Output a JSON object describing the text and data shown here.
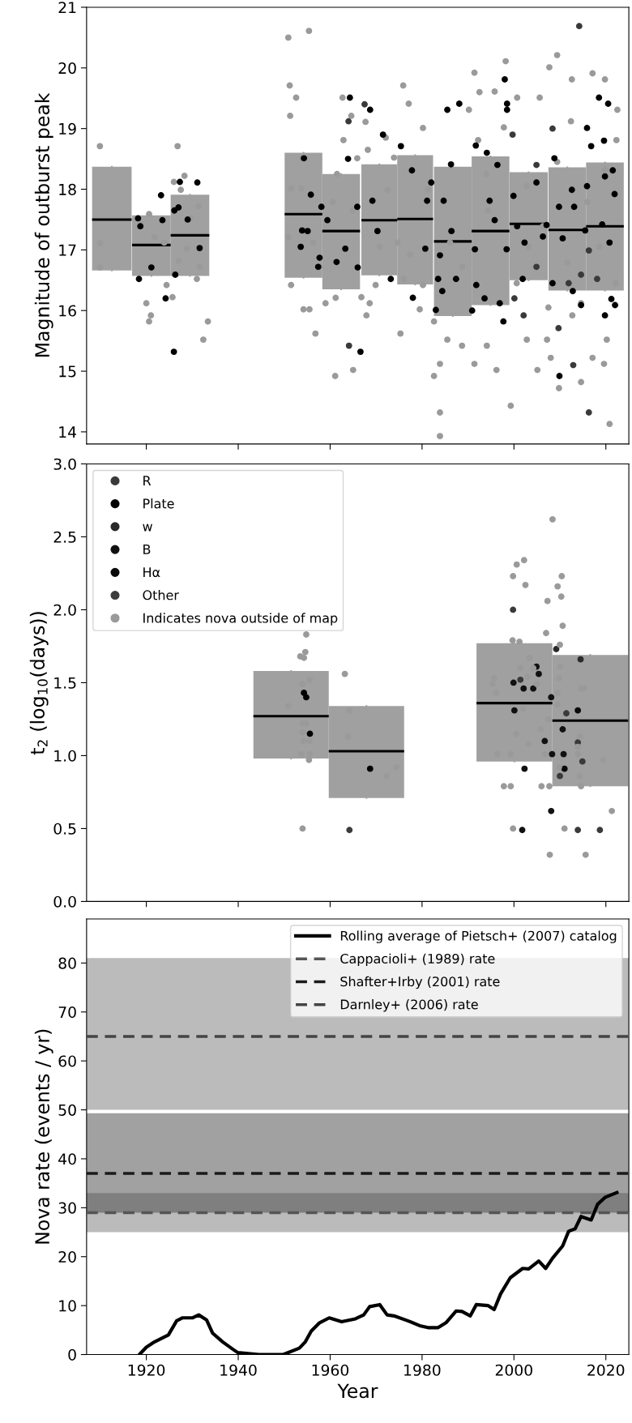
{
  "chart_data": [
    {
      "type": "scatter",
      "ylabel": "Magnitude of outburst peak",
      "marker": "circle",
      "xlim": [
        1907,
        2025
      ],
      "xticks": [
        1920,
        1940,
        1960,
        1980,
        2000,
        2020
      ],
      "ylim": [
        13.8,
        21
      ],
      "yticks": [
        14,
        15,
        16,
        17,
        18,
        19,
        20,
        21
      ],
      "tick_labels": "y",
      "series": [
        {
          "type": "box",
          "color": "#a0a0a0",
          "x": [
            1912.5,
            1921.1,
            1929.5,
            1954.2,
            1962.4,
            1970.7,
            1978.5,
            1986.7,
            1994.9,
            2003.2,
            2011.6,
            2019.8
          ],
          "boxes": [
            {
              "low": 16.66,
              "q1": 16.66,
              "median": 17.5,
              "q3": 18.37,
              "high": 18.37
            },
            {
              "low": 16.57,
              "q1": 16.57,
              "median": 17.08,
              "q3": 17.57,
              "high": 17.57
            },
            {
              "low": 16.57,
              "q1": 16.57,
              "median": 17.24,
              "q3": 17.91,
              "high": 17.91
            },
            {
              "low": 16.54,
              "q1": 16.54,
              "median": 17.59,
              "q3": 18.6,
              "high": 18.6
            },
            {
              "low": 16.35,
              "q1": 16.35,
              "median": 17.31,
              "q3": 18.25,
              "high": 18.25
            },
            {
              "low": 16.58,
              "q1": 16.58,
              "median": 17.49,
              "q3": 18.41,
              "high": 18.41
            },
            {
              "low": 16.43,
              "q1": 16.43,
              "median": 17.51,
              "q3": 18.56,
              "high": 18.56
            },
            {
              "low": 15.91,
              "q1": 15.91,
              "median": 17.14,
              "q3": 18.37,
              "high": 18.37
            },
            {
              "low": 16.09,
              "q1": 16.09,
              "median": 17.31,
              "q3": 18.54,
              "high": 18.54
            },
            {
              "low": 16.5,
              "q1": 16.5,
              "median": 17.43,
              "q3": 18.28,
              "high": 18.28
            },
            {
              "low": 16.33,
              "q1": 16.33,
              "median": 17.33,
              "q3": 18.36,
              "high": 18.36
            },
            {
              "low": 16.33,
              "q1": 16.33,
              "median": 17.39,
              "q3": 18.44,
              "high": 18.44
            }
          ]
        },
        {
          "type": "scatter",
          "color": "#9a9a9a",
          "marker": "circle",
          "x": [
            1909.9,
            1909.9,
            1909.9,
            1926.8,
            1918.9,
            1920.6,
            1921.8,
            1923.9,
            1920,
            1921,
            1920.6,
            1924.4,
            1925.7,
            1926,
            1928.3,
            1927.5,
            1929.6,
            1931.4,
            1931.6,
            1931,
            1932.4,
            1933.4,
            1927,
            1928.8,
            1950.9,
            1955.4,
            1951.2,
            1952.6,
            1951.3,
            1954,
            1951.5,
            1953.7,
            1950.9,
            1951.5,
            1954.2,
            1955.5,
            1956.8,
            1956.3,
            1957.7,
            1961.2,
            1959,
            1961.1,
            1965,
            1962.7,
            1962.9,
            1964.6,
            1965.9,
            1967.7,
            1968.2,
            1967.9,
            1968.6,
            1966.8,
            1969.9,
            1972.1,
            1973.9,
            1975.9,
            1977.1,
            1975.3,
            1977.4,
            1979.5,
            1980.2,
            1980.2,
            1982.6,
            1982.6,
            1983.9,
            1983.9,
            1983.9,
            1985.5,
            1988.7,
            1991.4,
            1992.5,
            1990.2,
            1992.2,
            1991.4,
            1994.1,
            1995.8,
            1998.2,
            1996.2,
            1999.3,
            2000.7,
            1997.8,
            2005.6,
            2007.7,
            2009.4,
            2008,
            2009.8,
            2005.1,
            2012.6,
            2017.1,
            2019.8,
            2020.8,
            2014.6,
            2017.1,
            2019.6,
            2022.5,
            2022.3,
            2012.4,
            2002.8,
            2007.2,
            2012.7,
            2020.2,
            2002.8,
            2006.3,
            2011.6,
            2016,
            2018.6,
            2022.1,
            2000.6,
            1994.4,
            1986.1,
            1988.7,
            1994,
            2009.4,
            2019.8,
            2014.6,
            2007.5,
            2003.2,
            1981.3,
            1972.5,
            1964.9,
            1960.6,
            1961.5,
            1970.8,
            1974.7,
            1976
          ],
          "values": [
            18.71,
            17.11,
            16.71,
            18.71,
            17.41,
            17.59,
            17.21,
            17.12,
            16.12,
            15.92,
            15.82,
            16.42,
            16.22,
            18.12,
            18.22,
            17.99,
            17.52,
            17.72,
            16.72,
            16.52,
            15.52,
            15.82,
            16.82,
            17.02,
            20.5,
            20.61,
            19.71,
            19.51,
            19.21,
            18.51,
            18.01,
            18.01,
            17.21,
            16.42,
            16.02,
            16.02,
            15.62,
            17.12,
            16.72,
            16.21,
            16.12,
            14.92,
            15.02,
            19.51,
            18.81,
            19.21,
            18.51,
            19.11,
            18.65,
            15.92,
            16.12,
            16.22,
            16.42,
            18.85,
            18.52,
            19.71,
            19.41,
            15.62,
            16.92,
            16.02,
            19.01,
            16.42,
            15.82,
            14.92,
            14.32,
            13.93,
            15.12,
            15.52,
            15.42,
            19.92,
            19.6,
            19.31,
            18.81,
            15.12,
            15.42,
            19.61,
            20.11,
            15.02,
            14.43,
            19.51,
            19.02,
            19.51,
            20.01,
            20.21,
            15.22,
            14.72,
            15.02,
            19.81,
            19.91,
            19.81,
            14.13,
            14.82,
            15.22,
            15.12,
            19.31,
            18.81,
            19.12,
            15.52,
            15.52,
            15.92,
            15.52,
            18.05,
            17.39,
            16.79,
            17.79,
            17.05,
            16.45,
            16.45,
            17.65,
            17.12,
            16.72,
            18.25,
            18.45,
            18.32,
            16.12,
            16.05,
            17.05,
            17.99,
            17.99,
            17.65,
            17.79,
            18.25,
            17.05,
            17.12,
            16.52
          ]
        },
        {
          "type": "scatter",
          "color": "#000000",
          "x": [
            1918.4,
            1918.2,
            1918.7,
            1923.2,
            1923.5,
            1921.1,
            1924.2,
            1926,
            1927.3,
            1926.1,
            1927,
            1931.1,
            1931.6,
            1929,
            1926.3,
            1954.3,
            1955.8,
            1953.9,
            1953.6,
            1955.1,
            1957.7,
            1957.4,
            1958.1,
            1959.4,
            1961.4,
            1964.3,
            1963.9,
            1966.6,
            1968.7,
            1965.9,
            1963.3,
            1966,
            1971.5,
            1975.4,
            1977.8,
            1969.2,
            1970.3,
            1973.2,
            1978,
            1980.7,
            1982,
            1981.1,
            1985.5,
            1988.1,
            1986.3,
            1986.4,
            1983.9,
            1983.5,
            1984.4,
            1983,
            1987.4,
            1984.7,
            1991.7,
            1994.1,
            1998,
            1998.5,
            1998.5,
            1996.4,
            1994.7,
            1995.8,
            1991.5,
            1991.8,
            1990.9,
            1993.6,
            1997.7,
            1996.9,
            1999.9,
            1998.4,
            2001.9,
            2002.3,
            2008.8,
            2009.9,
            2018.5,
            2020.5,
            2019.6,
            2015.9,
            2016.8,
            2019.8,
            2021.5,
            2021.9,
            2015.9,
            2012.6,
            2009.8,
            2013.1,
            2004.9,
            2007.1,
            2010.6,
            2015.5,
            2019.2,
            2020.8,
            2008.4,
            2021.2,
            2012.8,
            2006.3,
            2000.7,
            2019.8,
            2022,
            2014.6
          ],
          "values": [
            16.52,
            17.52,
            17.39,
            17.9,
            17.49,
            16.71,
            16.2,
            15.32,
            18.12,
            17.65,
            17.7,
            18.11,
            17.03,
            17.5,
            16.59,
            18.51,
            17.91,
            17.32,
            17.05,
            17.31,
            16.87,
            16.72,
            17.71,
            17.49,
            16.8,
            19.51,
            18.5,
            15.32,
            19.31,
            17.71,
            17.02,
            16.71,
            18.9,
            18.71,
            18.31,
            17.81,
            17.31,
            16.52,
            16.21,
            17.02,
            18.11,
            17.81,
            19.31,
            19.41,
            18.41,
            17.31,
            16.91,
            16.52,
            16.32,
            16.01,
            16.52,
            17.81,
            18.72,
            18.6,
            19.81,
            19.41,
            19.31,
            18.4,
            17.81,
            17.49,
            17.01,
            16.42,
            16.0,
            16.2,
            15.82,
            16.12,
            17.89,
            17.01,
            16.52,
            17.12,
            18.51,
            14.92,
            19.51,
            19.41,
            18.8,
            19.01,
            18.71,
            18.21,
            18.31,
            17.92,
            18.05,
            17.99,
            17.71,
            17.71,
            18.11,
            17.41,
            17.19,
            17.32,
            17.42,
            17.12,
            16.45,
            16.19,
            16.32,
            17.22,
            17.39,
            15.92,
            16.09,
            16.09
          ]
        },
        {
          "type": "scatter",
          "color": "#3a3a3a",
          "x": [
            1964,
            1964.1,
            1967.5,
            1999.7,
            2000.1,
            2002.1,
            2004.9,
            2008.4,
            2009.7,
            2012.9,
            2014.2,
            2016.3,
            2004.9,
            2014.6,
            2018.1,
            2016.3,
            2011.9
          ],
          "values": [
            19.12,
            15.42,
            19.4,
            18.9,
            16.2,
            15.92,
            18.4,
            19.0,
            15.71,
            15.1,
            20.69,
            14.32,
            16.72,
            16.59,
            16.52,
            16.99,
            16.45
          ]
        }
      ]
    },
    {
      "type": "scatter",
      "ylabel": "t$_{2}$ (log$_{10}$(days))",
      "marker": "circle",
      "legend": "top left",
      "xlim": [
        1907,
        2025
      ],
      "xticks": [
        1920,
        1940,
        1960,
        1980,
        2000,
        2020
      ],
      "ylim": [
        0.0,
        3.0
      ],
      "yticks": [
        {
          "value": 0,
          "label": "0.0"
        },
        0.5,
        {
          "value": 1,
          "label": "1.0"
        },
        1.5,
        {
          "value": 2,
          "label": "2.0"
        },
        2.5,
        {
          "value": 3,
          "label": "3.0"
        }
      ],
      "tick_labels": "y",
      "series": [
        {
          "type": "box",
          "color": "#a0a0a0",
          "x": [
            1951.5,
            1967.9,
            2000.1,
            2016.6
          ],
          "boxes": [
            {
              "low": 0.98,
              "q1": 0.98,
              "median": 1.27,
              "q3": 1.58,
              "high": 1.58
            },
            {
              "low": 0.71,
              "q1": 0.71,
              "median": 1.03,
              "q3": 1.34,
              "high": 1.34
            },
            {
              "low": 0.96,
              "q1": 0.96,
              "median": 1.36,
              "q3": 1.77,
              "high": 1.77
            },
            {
              "low": 0.79,
              "q1": 0.79,
              "median": 1.24,
              "q3": 1.69,
              "high": 1.69
            }
          ]
        },
        {
          "type": "scatter",
          "name": "R",
          "color": "#3a3a3a",
          "x": [
            1999.8,
            2001.4,
            2010,
            2014.9,
            2013.9,
            2011.4,
            2013.9,
            2018.7
          ],
          "values": [
            2.0,
            1.52,
            0.86,
            0.96,
            1.09,
            1.29,
            0.49,
            0.49
          ]
        },
        {
          "type": "scatter",
          "name": "Plate",
          "color": "#000000",
          "x": [
            1954.3,
            1954.8,
            1955.6,
            1968.7
          ],
          "values": [
            1.43,
            1.4,
            1.15,
            0.91
          ]
        },
        {
          "type": "scatter",
          "name": "w",
          "color": "#2a2a2a",
          "x": [
            2014.5,
            2009.2
          ],
          "values": [
            1.66,
            1.73
          ]
        },
        {
          "type": "scatter",
          "name": "B",
          "color": "#111111",
          "x": [
            1999.9,
            2002.1,
            2004.2,
            2004.9,
            2005.4,
            2008.1,
            2000.1,
            2002.3,
            2001.8,
            2008.1,
            2010.8,
            2010.6,
            2006.7,
            2008.3
          ],
          "values": [
            1.5,
            1.46,
            1.46,
            1.61,
            1.56,
            1.4,
            1.31,
            0.91,
            0.49,
            0.62,
            1.01,
            1.18,
            1.1,
            1.01
          ]
        },
        {
          "type": "scatter",
          "name": "Hα",
          "color": "#0a0a0a",
          "x": [
            2013.9,
            2011
          ],
          "values": [
            1.31,
            0.91
          ]
        },
        {
          "type": "scatter",
          "name": "Other",
          "color": "#3c3c3c",
          "x": [
            1964.2
          ],
          "values": [
            0.49
          ]
        },
        {
          "type": "scatter",
          "name": "Indicates nova outside of map",
          "color": "#9a9a9a",
          "marker": "circle",
          "x": [
            1954.8,
            1954.6,
            1953.5,
            1954.3,
            1955.6,
            1954,
            1950.9,
            1954,
            1954.8,
            1954,
            1954.2,
            1955.5,
            1953.7,
            1955.5,
            1955.4,
            1954,
            1963.2,
            1964.2,
            1963.9,
            1972.3,
            1974.4,
            2008.4,
            2002.2,
            2000.6,
            1999.8,
            2002.5,
            2010.4,
            2009.5,
            2010.3,
            2007.3,
            2010.6,
            2007,
            1999.7,
            2001.2,
            2010,
            1995.7,
            1995.3,
            1996.1,
            2002.9,
            2004.2,
            2010.1,
            2009.8,
            2001.4,
            2003.4,
            2005,
            2009.5,
            2002,
            2007.5,
            2009.5,
            2014.6,
            2015.3,
            2014.3,
            2013.9,
            2013.9,
            2019.4,
            1996.4,
            1999.3,
            2003.2,
            2006.7,
            2009.8,
            1997.8,
            1999.3,
            2006,
            2007.7,
            2014.6,
            2014.3,
            1999.8,
            2011,
            2007.8,
            2015.6,
            2021.3,
            2005.8,
            2000.5
          ],
          "values": [
            1.83,
            1.71,
            1.68,
            1.67,
            1.52,
            1.49,
            1.34,
            1.22,
            1.22,
            1.16,
            1.1,
            1.1,
            1.01,
            1.01,
            0.97,
            0.5,
            1.56,
            1.31,
            1.13,
            0.86,
            0.92,
            2.62,
            2.34,
            2.31,
            2.23,
            2.17,
            2.23,
            2.16,
            2.09,
            2.06,
            1.89,
            1.84,
            1.79,
            1.78,
            1.76,
            1.53,
            1.49,
            1.43,
            1.54,
            1.6,
            1.61,
            1.53,
            1.6,
            1.67,
            1.49,
            1.43,
            1.32,
            1.25,
            1.35,
            1.46,
            1.46,
            1.13,
            1.06,
            1.01,
            0.97,
            1.01,
            1.01,
            1.08,
            1.01,
            0.92,
            0.79,
            0.79,
            0.79,
            0.79,
            0.79,
            0.86,
            0.5,
            0.5,
            0.32,
            0.32,
            0.62,
            1.18,
            1.15
          ]
        }
      ]
    },
    {
      "type": "line",
      "xlabel": "Year",
      "ylabel": "Nova rate (events / yr)",
      "legend": "top right",
      "line_style": "solid",
      "xlim": [
        1907,
        2025
      ],
      "xticks": [
        1920,
        1940,
        1960,
        1980,
        2000,
        2020
      ],
      "ylim": [
        0,
        89
      ],
      "yticks": [
        0,
        10,
        20,
        30,
        40,
        50,
        60,
        70,
        80
      ],
      "bands": [
        {
          "axis": "y",
          "from": 25,
          "to": 33,
          "color": "#777777"
        },
        {
          "axis": "y",
          "from": 29,
          "to": 49.3,
          "color": "#444444"
        },
        {
          "axis": "y",
          "from": 50,
          "to": 81,
          "color": "#777777"
        }
      ],
      "series": [
        {
          "name": "Rolling average of Pietsch+ (2007) catalog",
          "color": "#000000",
          "x": [
            1918.5,
            1920,
            1921.8,
            1924.8,
            1926.6,
            1927.9,
            1930.1,
            1931.4,
            1933.1,
            1934.4,
            1936.6,
            1938.8,
            1939.9,
            1944.5,
            1949.8,
            1953.3,
            1954.6,
            1955.9,
            1957.7,
            1959.8,
            1962.5,
            1965.5,
            1967.3,
            1968.6,
            1970.8,
            1972.4,
            1973.9,
            1976.9,
            1979.5,
            1981.3,
            1983.5,
            1985.2,
            1987.4,
            1988.7,
            1990.5,
            1991.8,
            1994.4,
            1995.7,
            1997.1,
            1999.2,
            2001.9,
            2003.2,
            2005.4,
            2006.9,
            2008.4,
            2010.6,
            2011.9,
            2013.3,
            2014.6,
            2016.8,
            2018.2,
            2019.8,
            2022.4
          ],
          "values": [
            0,
            1.5,
            2.6,
            4.0,
            6.9,
            7.5,
            7.5,
            8.1,
            7.1,
            4.4,
            2.6,
            1.1,
            0.4,
            0,
            0,
            1.3,
            2.6,
            4.8,
            6.5,
            7.5,
            6.7,
            7.3,
            8.1,
            9.8,
            10.2,
            8.1,
            7.9,
            6.9,
            5.9,
            5.5,
            5.5,
            6.5,
            8.9,
            8.8,
            7.9,
            10.2,
            10.0,
            9.2,
            12.4,
            15.7,
            17.6,
            17.5,
            19.1,
            17.6,
            19.7,
            22.2,
            25.2,
            25.7,
            28.2,
            27.5,
            30.7,
            32.1,
            33.1
          ]
        }
      ],
      "ref_lines": [
        {
          "axis": "y",
          "value": 29,
          "label": "Cappacioli+ (1989) rate",
          "color": "#555555",
          "line_style": "dashed"
        },
        {
          "axis": "y",
          "value": 37,
          "label": "Shafter+Irby (2001) rate",
          "color": "#1a1a1a",
          "line_style": "dashed"
        },
        {
          "axis": "y",
          "value": 65,
          "label": "Darnley+ (2006) rate",
          "color": "#444444",
          "line_style": "dashed"
        }
      ]
    }
  ]
}
